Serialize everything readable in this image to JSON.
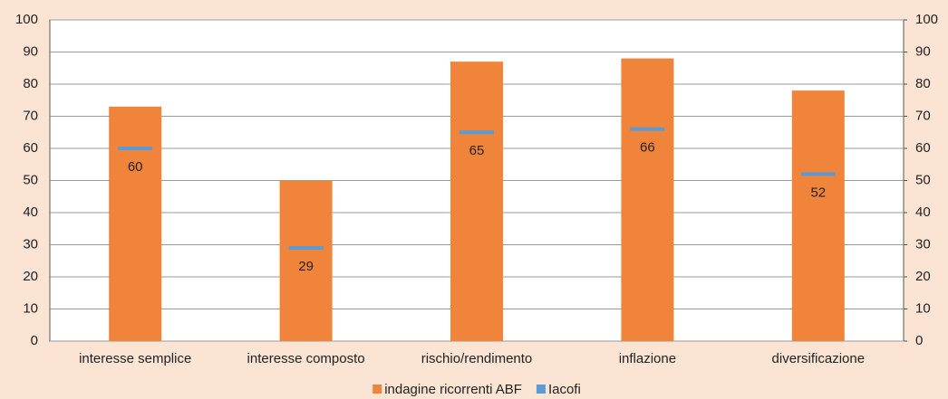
{
  "chart_data": {
    "type": "bar",
    "categories": [
      "interesse semplice",
      "interesse composto",
      "rischio/rendimento",
      "inflazione",
      "diversificazione"
    ],
    "series": [
      {
        "name": "indagine ricorrenti ABF",
        "color": "#f0843a",
        "values": [
          73,
          50,
          87,
          88,
          78
        ]
      },
      {
        "name": "Iacofi",
        "color": "#5b9bd5",
        "axis": "y2",
        "values": [
          60,
          29,
          65,
          66,
          52
        ]
      }
    ],
    "ylim": [
      0,
      100
    ],
    "yticks": [
      0,
      10,
      20,
      30,
      40,
      50,
      60,
      70,
      80,
      90,
      100
    ],
    "y2lim": [
      0,
      100
    ],
    "y2ticks": [
      0,
      10,
      20,
      30,
      40,
      50,
      60,
      70,
      80,
      90,
      100
    ],
    "grid": true,
    "legend": "bottom"
  }
}
